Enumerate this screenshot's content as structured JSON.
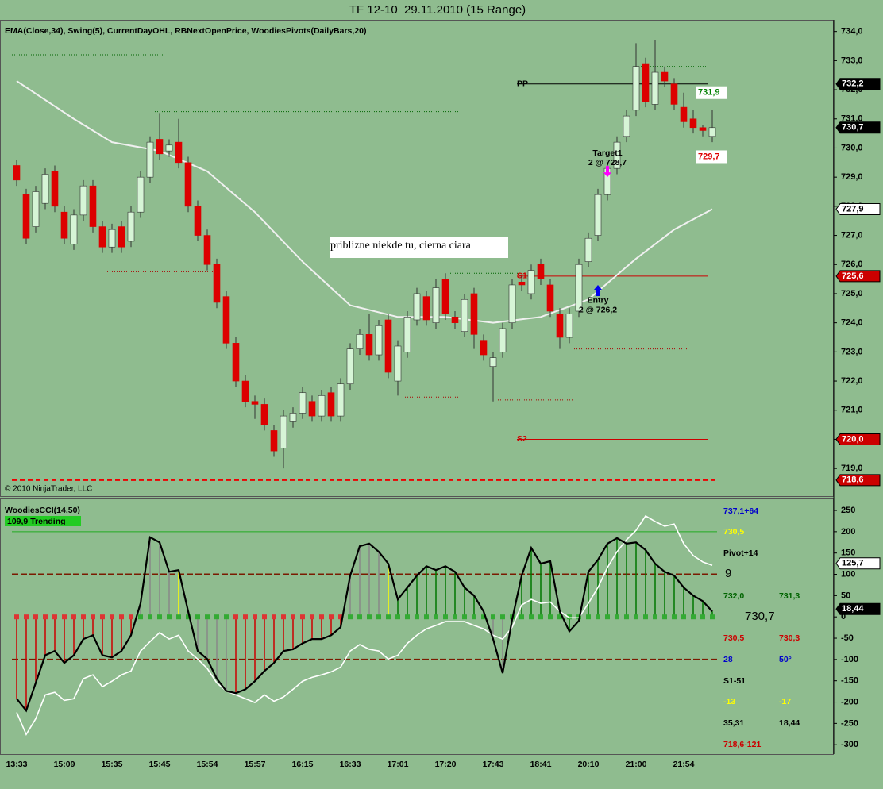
{
  "chart_data": [
    {
      "type": "candlestick",
      "title": "TF 12-10  29.11.2010 (15 Range)",
      "indicators": "EMA(Close,34), Swing(5), CurrentDayOHL, RBNextOpenPrice, WoodiesPivots(DailyBars,20)",
      "copyright": "© 2010 NinjaTrader, LLC",
      "note": "priblizne niekde tu, cierna ciara",
      "up_color": "#d6f5d6",
      "down_color": "#dd0000",
      "outline_color": "#333333",
      "ylim": [
        718.05,
        734.4
      ],
      "yticks": [
        {
          "value": 719,
          "label": "719,0"
        },
        {
          "value": 720,
          "label": "720,0"
        },
        {
          "value": 721,
          "label": "721,0"
        },
        {
          "value": 722,
          "label": "722,0"
        },
        {
          "value": 723,
          "label": "723,0"
        },
        {
          "value": 724,
          "label": "724,0"
        },
        {
          "value": 725,
          "label": "725,0"
        },
        {
          "value": 726,
          "label": "726,0"
        },
        {
          "value": 727,
          "label": "727,0"
        },
        {
          "value": 728,
          "label": "728,0"
        },
        {
          "value": 729,
          "label": "729,0"
        },
        {
          "value": 730,
          "label": "730,0"
        },
        {
          "value": 731,
          "label": "731,0"
        },
        {
          "value": 732,
          "label": "732,0"
        },
        {
          "value": 733,
          "label": "733,0"
        },
        {
          "value": 734,
          "label": "734,0"
        }
      ],
      "open": [
        729.4,
        728.4,
        727.3,
        728.1,
        729.2,
        727.8,
        726.7,
        727.7,
        728.7,
        727.3,
        726.6,
        727.3,
        726.8,
        727.8,
        729.0,
        730.3,
        729.9,
        730.2,
        729.5,
        728.0,
        727.0,
        726.0,
        724.9,
        723.3,
        722.0,
        721.3,
        721.2,
        720.3,
        719.7,
        720.6,
        720.9,
        721.3,
        720.8,
        721.6,
        720.8,
        721.9,
        723.1,
        723.6,
        722.9,
        724.1,
        722.0,
        723.0,
        724.1,
        724.9,
        724.0,
        725.5,
        724.2,
        723.7,
        725.0,
        723.4,
        722.5,
        723.0,
        724.0,
        725.4,
        725.0,
        726.0,
        725.3,
        724.3,
        723.5,
        724.4,
        726.1,
        727.0,
        728.4,
        729.3,
        730.4,
        731.3,
        732.9,
        731.5,
        732.6,
        732.2,
        731.4,
        731.0,
        730.7,
        730.4
      ],
      "high": [
        729.6,
        728.6,
        728.7,
        729.3,
        729.4,
        728.0,
        727.9,
        728.9,
        728.9,
        727.5,
        727.4,
        727.5,
        728.0,
        729.2,
        730.4,
        731.2,
        730.3,
        731.0,
        729.7,
        728.2,
        727.2,
        726.2,
        725.1,
        723.5,
        722.2,
        721.5,
        721.4,
        720.5,
        721.0,
        721.1,
        721.8,
        721.5,
        721.7,
        721.8,
        722.1,
        723.3,
        723.8,
        724.3,
        724.1,
        724.3,
        723.4,
        724.4,
        725.2,
        725.1,
        725.5,
        725.7,
        724.4,
        725.0,
        725.2,
        723.6,
        723.0,
        724.0,
        725.5,
        725.6,
        726.0,
        726.2,
        725.5,
        724.5,
        724.5,
        726.2,
        727.1,
        728.6,
        729.5,
        730.4,
        731.3,
        733.6,
        733.1,
        733.7,
        732.8,
        732.4,
        731.9,
        731.3,
        730.8,
        731.3
      ],
      "low": [
        728.7,
        726.7,
        727.1,
        727.9,
        727.8,
        726.7,
        726.5,
        727.5,
        727.1,
        726.4,
        726.4,
        726.4,
        726.6,
        727.6,
        728.8,
        729.6,
        729.7,
        729.3,
        727.8,
        726.8,
        725.8,
        724.5,
        723.1,
        721.8,
        721.1,
        720.7,
        720.3,
        719.4,
        719.0,
        720.4,
        720.7,
        720.6,
        720.6,
        720.6,
        720.6,
        721.7,
        722.9,
        722.7,
        722.7,
        722.1,
        721.5,
        722.8,
        723.9,
        723.9,
        723.8,
        724.1,
        723.8,
        723.5,
        723.1,
        722.7,
        721.3,
        722.8,
        723.8,
        725.1,
        724.8,
        725.3,
        724.2,
        723.1,
        723.3,
        724.2,
        725.9,
        726.8,
        728.2,
        729.1,
        730.2,
        731.1,
        731.4,
        731.3,
        732.1,
        731.3,
        730.7,
        730.5,
        730.4,
        730.2
      ],
      "close": [
        728.9,
        726.9,
        728.5,
        729.1,
        728.0,
        726.9,
        727.7,
        728.7,
        727.3,
        726.6,
        727.2,
        726.6,
        727.8,
        729.0,
        730.2,
        729.8,
        730.1,
        729.5,
        728.0,
        727.0,
        726.0,
        724.7,
        723.3,
        722.0,
        721.3,
        721.2,
        720.5,
        719.6,
        720.8,
        720.9,
        721.6,
        720.8,
        721.5,
        720.8,
        721.9,
        723.1,
        723.6,
        722.9,
        723.9,
        722.3,
        723.2,
        724.2,
        725.0,
        724.1,
        725.2,
        724.3,
        724.0,
        724.8,
        723.6,
        722.9,
        722.8,
        723.8,
        725.3,
        725.3,
        725.8,
        725.5,
        724.4,
        723.5,
        724.3,
        726.0,
        726.9,
        728.4,
        729.3,
        730.2,
        731.1,
        732.8,
        731.6,
        732.6,
        732.3,
        731.5,
        730.9,
        730.7,
        730.6,
        730.7
      ],
      "ema": {
        "color": "#f0f0f0",
        "x": [
          0,
          6,
          10,
          15,
          20,
          25,
          30,
          35,
          40,
          45,
          50,
          55,
          60,
          65,
          69,
          73
        ],
        "values": [
          732.3,
          731.0,
          730.2,
          729.9,
          729.2,
          727.8,
          726.1,
          724.6,
          724.2,
          724.2,
          724.0,
          724.2,
          724.8,
          726.2,
          727.2,
          727.9
        ]
      },
      "swing_highs": [
        {
          "from": 0,
          "to": 15,
          "value": 733.2
        },
        {
          "from": 15,
          "to": 46,
          "value": 731.25
        },
        {
          "from": 46,
          "to": 53,
          "value": 725.7
        },
        {
          "from": 66,
          "to": 72,
          "value": 732.8
        }
      ],
      "swing_lows": [
        {
          "from": 10,
          "to": 21,
          "value": 725.75
        },
        {
          "from": 41,
          "to": 46,
          "value": 721.45
        },
        {
          "from": 51,
          "to": 58,
          "value": 721.35
        },
        {
          "from": 59,
          "to": 70,
          "value": 723.1
        }
      ],
      "levels": [
        {
          "label": "PP",
          "value": 732.2,
          "color": "#000000",
          "from": 53,
          "to": 72
        },
        {
          "label": "S1",
          "value": 725.6,
          "color": "#cc0000",
          "from": 53,
          "to": 72
        },
        {
          "label": "S2",
          "value": 720.0,
          "color": "#cc0000",
          "from": 53,
          "to": 72
        },
        {
          "value": 718.6,
          "color": "#ee0000",
          "from": 0,
          "to": 73,
          "dashed": true
        }
      ],
      "next_open": [
        {
          "value": 731.9,
          "label": "731,9",
          "color": "#008000"
        },
        {
          "value": 729.7,
          "label": "729,7",
          "color": "#dd0000"
        }
      ],
      "signals": [
        {
          "label": "Target1",
          "text": "2 @ 728,7",
          "at": 62,
          "value": 729.0,
          "color": "#ff00ff",
          "dir": "down"
        },
        {
          "label": "Entry",
          "text": "2 @ 726,2",
          "at": 61,
          "value": 725.3,
          "color": "#0000ee",
          "dir": "up"
        }
      ],
      "axis_markers": [
        {
          "value": 732.2,
          "label": "732,2",
          "color": "#000000"
        },
        {
          "value": 730.7,
          "label": "730,7",
          "color": "#000000"
        },
        {
          "value": 727.9,
          "label": "727,9",
          "color": "#ffffff"
        },
        {
          "value": 725.6,
          "label": "725,6",
          "color": "#cc0000"
        },
        {
          "value": 720.0,
          "label": "720,0",
          "color": "#cc0000"
        },
        {
          "value": 718.6,
          "label": "718,6",
          "color": "#cc0000"
        }
      ]
    },
    {
      "type": "cci",
      "title": "WoodiesCCI(14,50)",
      "status": "109,9 Trending",
      "ylim": [
        -322,
        278
      ],
      "yticks": [
        250,
        200,
        150,
        100,
        50,
        0,
        -50,
        -100,
        -150,
        -200,
        -250,
        -300
      ],
      "categories": [
        "13:33",
        null,
        null,
        null,
        null,
        "15:09",
        null,
        null,
        null,
        null,
        "15:35",
        null,
        null,
        null,
        null,
        "15:45",
        null,
        null,
        null,
        null,
        "15:54",
        null,
        null,
        null,
        null,
        "15:57",
        null,
        null,
        null,
        null,
        "16:15",
        null,
        null,
        null,
        null,
        "16:33",
        null,
        null,
        null,
        null,
        "17:01",
        null,
        null,
        null,
        null,
        "17:20",
        null,
        null,
        null,
        null,
        "17:43",
        null,
        null,
        null,
        null,
        "18:41",
        null,
        null,
        null,
        null,
        "20:10",
        null,
        null,
        null,
        null,
        "21:00",
        null,
        null,
        null,
        null,
        "21:54",
        null,
        null,
        null
      ],
      "series": [
        {
          "color": "#000000",
          "values": [
            -192,
            -220,
            -155,
            -90,
            -80,
            -108,
            -90,
            -52,
            -43,
            -90,
            -95,
            -80,
            -43,
            32,
            187,
            175,
            106,
            110,
            13,
            -80,
            -99,
            -145,
            -174,
            -179,
            -170,
            -151,
            -127,
            -108,
            -80,
            -76,
            -62,
            -52,
            -52,
            -43,
            -24,
            97,
            166,
            172,
            153,
            125,
            41,
            69,
            97,
            119,
            110,
            119,
            106,
            69,
            50,
            13,
            -52,
            -132,
            -6,
            97,
            162,
            125,
            131,
            13,
            -34,
            -9,
            106,
            134,
            172,
            185,
            172,
            175,
            157,
            125,
            106,
            97,
            69,
            50,
            37,
            13
          ]
        },
        {
          "color": "#ffffff",
          "values": [
            -224,
            -276,
            -239,
            -183,
            -177,
            -196,
            -192,
            -145,
            -136,
            -164,
            -151,
            -136,
            -127,
            -80,
            -58,
            -37,
            -52,
            -43,
            -80,
            -99,
            -121,
            -155,
            -174,
            -183,
            -192,
            -201,
            -183,
            -198,
            -188,
            -170,
            -151,
            -142,
            -136,
            -129,
            -118,
            -80,
            -65,
            -76,
            -80,
            -99,
            -90,
            -62,
            -43,
            -28,
            -20,
            -11,
            -11,
            -11,
            -20,
            -28,
            -43,
            -52,
            -24,
            28,
            41,
            32,
            35,
            13,
            -2,
            -2,
            32,
            69,
            116,
            153,
            181,
            203,
            237,
            224,
            213,
            218,
            172,
            144,
            129,
            121
          ]
        }
      ],
      "histogram_colors": [
        "#cc0000",
        "#cc0000",
        "#cc0000",
        "#cc0000",
        "#cc0000",
        "#cc0000",
        "#cc0000",
        "#cc0000",
        "#cc0000",
        "#cc0000",
        "#cc0000",
        "#cc0000",
        "#cc0000",
        "#888888",
        "#888888",
        "#888888",
        "#888888",
        "#ffff00",
        "#888888",
        "#888888",
        "#888888",
        "#888888",
        "#888888",
        "#cc0000",
        "#cc0000",
        "#cc0000",
        "#cc0000",
        "#cc0000",
        "#cc0000",
        "#cc0000",
        "#cc0000",
        "#cc0000",
        "#cc0000",
        "#cc0000",
        "#cc0000",
        "#888888",
        "#888888",
        "#888888",
        "#888888",
        "#ffff00",
        "#007700",
        "#007700",
        "#007700",
        "#007700",
        "#007700",
        "#007700",
        "#007700",
        "#007700",
        "#007700",
        "#888888",
        "#888888",
        "#888888",
        "#888888",
        "#007700",
        "#007700",
        "#007700",
        "#007700",
        "#007700",
        "#007700",
        "#007700",
        "#007700",
        "#007700",
        "#007700",
        "#007700",
        "#007700",
        "#007700",
        "#007700",
        "#007700",
        "#007700",
        "#007700",
        "#007700",
        "#007700",
        "#007700",
        "#007700"
      ],
      "level_lines": [
        {
          "value": 200,
          "color": "#22aa22"
        },
        {
          "value": 100,
          "color": "#7a1a00",
          "dashed": true
        },
        {
          "value": -100,
          "color": "#7a1a00",
          "dashed": true
        },
        {
          "value": -200,
          "color": "#22aa22"
        }
      ],
      "side_labels": [
        {
          "text": "737,1+64",
          "color": "#0000cc"
        },
        {
          "text": "730,5",
          "color": "#ffff00"
        },
        {
          "text": "Pivot+14",
          "color": "#000000"
        },
        {
          "text": "9",
          "color": "#000000"
        },
        {
          "text": "732,0",
          "color": "#006400"
        },
        {
          "text": "731,3",
          "color": "#006400"
        },
        {
          "text": "730,7",
          "color": "#000000"
        },
        {
          "text": "730,5",
          "color": "#cc0000"
        },
        {
          "text": "730,3",
          "color": "#cc0000"
        },
        {
          "text": "28",
          "color": "#0000cc"
        },
        {
          "text": "50°",
          "color": "#0000cc"
        },
        {
          "text": "S1-51",
          "color": "#000000"
        },
        {
          "text": "-13",
          "color": "#ffff00"
        },
        {
          "text": "-17",
          "color": "#ffff00"
        },
        {
          "text": "35,31",
          "color": "#000000"
        },
        {
          "text": "18,44",
          "color": "#000000"
        },
        {
          "text": "718,6-121",
          "color": "#cc0000"
        }
      ],
      "axis_markers": [
        {
          "value": 125.7,
          "label": "125,7",
          "color": "#ffffff"
        },
        {
          "value": 18.44,
          "label": "18,44",
          "color": "#000000"
        }
      ]
    }
  ]
}
